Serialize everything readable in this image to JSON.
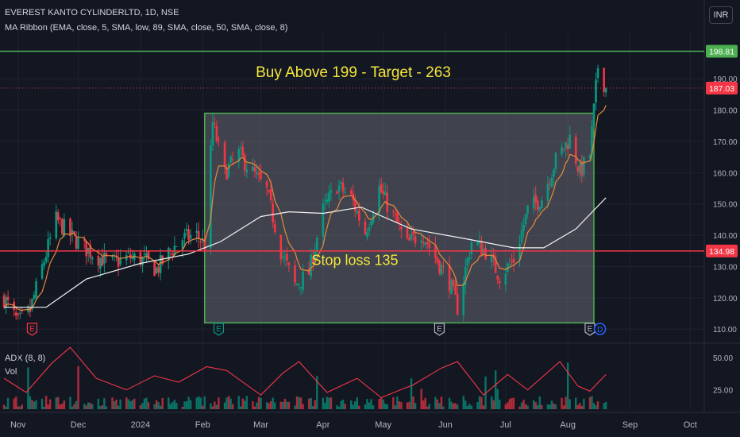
{
  "header": {
    "title": "EVEREST KANTO CYLINDERLTD, 1D, NSE",
    "indicator": "MA Ribbon (EMA, close, 5, SMA, low, 89, SMA, close, 50, SMA, close, 8)",
    "currency": "INR"
  },
  "sub_pane": {
    "adx_label": "ADX (8, 8)",
    "vol_label": "Vol",
    "ticks": [
      "50.00",
      "25.00"
    ]
  },
  "annotations": {
    "buy_text": "Buy Above 199 - Target - 263",
    "stop_text": "Stop loss 135",
    "resistance_label": "198.81",
    "support_label": "134.98",
    "last_price_label": "187.03"
  },
  "colors": {
    "background": "#131722",
    "resistance_line": "#4caf50",
    "support_line": "#f23645",
    "annotation_text": "#f5e63a",
    "up_candle": "#089981",
    "down_candle": "#f23645",
    "box_fill": "#787b86",
    "box_border": "#4caf50",
    "ma_fast": "#e8893a",
    "ma_slow": "#f2f2f2",
    "adx_line": "#f23645"
  },
  "chart_data": {
    "type": "candlestick",
    "title": "EVEREST KANTO CYLINDERLTD, 1D, NSE",
    "y_ticks": [
      110,
      120,
      130,
      140,
      150,
      160,
      170,
      180,
      190
    ],
    "ylim": [
      106,
      203
    ],
    "x_ticks": [
      "Nov",
      "Dec",
      "2024",
      "Feb",
      "Mar",
      "Apr",
      "May",
      "Jun",
      "Jul",
      "Aug",
      "Sep",
      "Oct"
    ],
    "x_range": [
      "2023-10-23",
      "2024-10-08"
    ],
    "horizontal_lines": [
      {
        "value": 198.81,
        "label": "198.81"
      },
      {
        "value": 134.98,
        "label": "134.98"
      }
    ],
    "last_price": 187.03,
    "rectangle": {
      "x_start": "2024-02-02",
      "x_end": "2024-08-14",
      "y_low": 112,
      "y_high": 179
    },
    "event_markers": [
      {
        "date": "2023-11-08",
        "label": "E"
      },
      {
        "date": "2024-02-09",
        "label": "E"
      },
      {
        "date": "2024-05-29",
        "label": "E"
      },
      {
        "date": "2024-08-12",
        "label": "E"
      },
      {
        "date": "2024-08-17",
        "label": "D"
      }
    ],
    "price_path": [
      [
        "2023-10-25",
        120
      ],
      [
        "2023-11-01",
        112
      ],
      [
        "2023-11-07",
        116
      ],
      [
        "2023-11-14",
        132
      ],
      [
        "2023-11-20",
        145
      ],
      [
        "2023-11-27",
        140
      ],
      [
        "2023-12-04",
        136
      ],
      [
        "2023-12-11",
        133
      ],
      [
        "2023-12-18",
        131
      ],
      [
        "2023-12-26",
        133
      ],
      [
        "2024-01-03",
        132
      ],
      [
        "2024-01-09",
        129
      ],
      [
        "2024-01-16",
        135
      ],
      [
        "2024-01-22",
        139
      ],
      [
        "2024-01-29",
        140
      ],
      [
        "2024-02-02",
        137
      ],
      [
        "2024-02-06",
        176
      ],
      [
        "2024-02-12",
        160
      ],
      [
        "2024-02-19",
        166
      ],
      [
        "2024-02-26",
        160
      ],
      [
        "2024-03-04",
        154
      ],
      [
        "2024-03-11",
        135
      ],
      [
        "2024-03-18",
        124
      ],
      [
        "2024-03-25",
        128
      ],
      [
        "2024-04-01",
        148
      ],
      [
        "2024-04-08",
        156
      ],
      [
        "2024-04-15",
        152
      ],
      [
        "2024-04-22",
        141
      ],
      [
        "2024-04-29",
        155
      ],
      [
        "2024-05-06",
        146
      ],
      [
        "2024-05-13",
        137
      ],
      [
        "2024-05-20",
        141
      ],
      [
        "2024-05-27",
        133
      ],
      [
        "2024-06-03",
        125
      ],
      [
        "2024-06-07",
        117
      ],
      [
        "2024-06-14",
        138
      ],
      [
        "2024-06-21",
        135
      ],
      [
        "2024-06-28",
        127
      ],
      [
        "2024-07-05",
        132
      ],
      [
        "2024-07-12",
        148
      ],
      [
        "2024-07-19",
        152
      ],
      [
        "2024-07-26",
        164
      ],
      [
        "2024-08-02",
        171
      ],
      [
        "2024-08-07",
        160
      ],
      [
        "2024-08-12",
        166
      ],
      [
        "2024-08-16",
        194
      ],
      [
        "2024-08-20",
        187
      ]
    ],
    "sma_slow": [
      [
        "2023-10-25",
        117
      ],
      [
        "2023-11-15",
        117
      ],
      [
        "2023-12-05",
        126
      ],
      [
        "2024-01-01",
        131
      ],
      [
        "2024-01-25",
        134
      ],
      [
        "2024-02-10",
        138
      ],
      [
        "2024-03-01",
        146
      ],
      [
        "2024-03-15",
        147.5
      ],
      [
        "2024-04-01",
        147
      ],
      [
        "2024-04-20",
        149
      ],
      [
        "2024-05-15",
        142
      ],
      [
        "2024-06-10",
        139
      ],
      [
        "2024-07-05",
        136
      ],
      [
        "2024-07-20",
        136
      ],
      [
        "2024-08-05",
        142
      ],
      [
        "2024-08-20",
        152
      ]
    ],
    "adx_range": [
      10,
      60
    ],
    "adx_path": [
      [
        "2023-10-25",
        34
      ],
      [
        "2023-11-05",
        23
      ],
      [
        "2023-11-18",
        46
      ],
      [
        "2023-11-27",
        58
      ],
      [
        "2023-12-10",
        34
      ],
      [
        "2023-12-25",
        25
      ],
      [
        "2024-01-08",
        36
      ],
      [
        "2024-01-20",
        31
      ],
      [
        "2024-02-03",
        43
      ],
      [
        "2024-02-13",
        40
      ],
      [
        "2024-03-01",
        21
      ],
      [
        "2024-03-12",
        38
      ],
      [
        "2024-03-20",
        47
      ],
      [
        "2024-04-03",
        23
      ],
      [
        "2024-04-18",
        34
      ],
      [
        "2024-04-30",
        19
      ],
      [
        "2024-05-16",
        29
      ],
      [
        "2024-05-30",
        42
      ],
      [
        "2024-06-07",
        47
      ],
      [
        "2024-06-20",
        21
      ],
      [
        "2024-07-02",
        37
      ],
      [
        "2024-07-12",
        25
      ],
      [
        "2024-07-28",
        47
      ],
      [
        "2024-08-06",
        28
      ],
      [
        "2024-08-12",
        24
      ],
      [
        "2024-08-20",
        37
      ]
    ]
  }
}
